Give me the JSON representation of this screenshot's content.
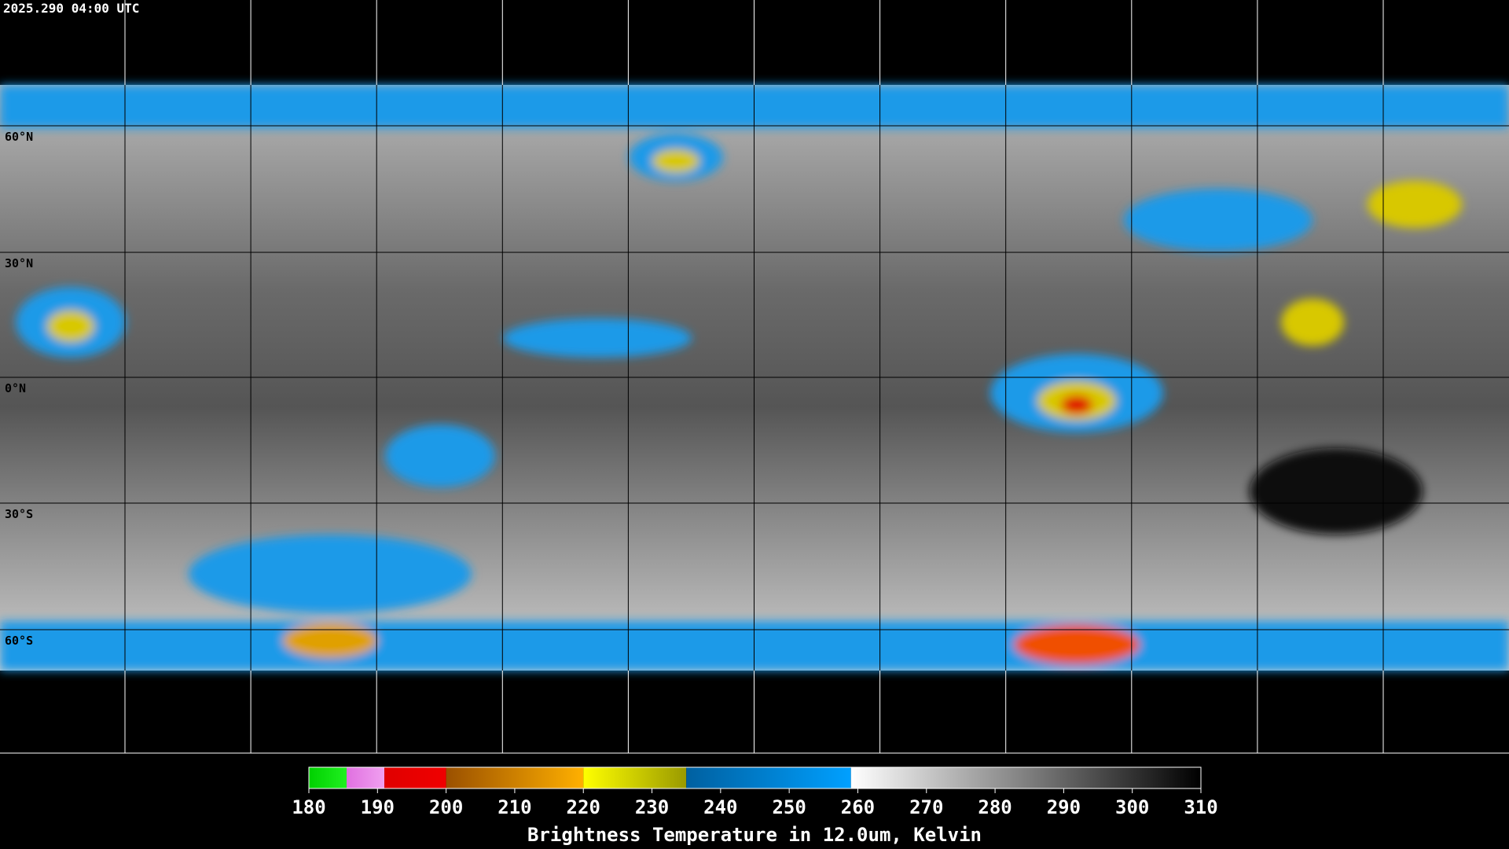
{
  "header": {
    "timestamp": "2025.290 04:00 UTC"
  },
  "map": {
    "latitude_labels": [
      "60°N",
      "30°N",
      "0°N",
      "30°S",
      "60°S"
    ]
  },
  "colorbar": {
    "label": "Brightness Temperature in 12.0um, Kelvin",
    "range": [
      180,
      310
    ],
    "ticks": [
      180,
      190,
      200,
      210,
      220,
      230,
      240,
      250,
      260,
      270,
      280,
      290,
      300,
      310
    ],
    "colormap": [
      {
        "from": 180,
        "to": 185.5,
        "colors": [
          "#00d000",
          "#20f020"
        ]
      },
      {
        "from": 185.5,
        "to": 191,
        "colors": [
          "#e070e0",
          "#f0a0f0"
        ]
      },
      {
        "from": 191,
        "to": 200,
        "colors": [
          "#e00000",
          "#f00000"
        ]
      },
      {
        "from": 200,
        "to": 220,
        "colors": [
          "#9a5000",
          "#ffb000"
        ]
      },
      {
        "from": 220,
        "to": 235,
        "colors": [
          "#ffff00",
          "#9a9a00"
        ]
      },
      {
        "from": 235,
        "to": 259,
        "colors": [
          "#0060a0",
          "#00a0ff"
        ]
      },
      {
        "from": 259,
        "to": 310,
        "colors": [
          "#ffffff",
          "#000000"
        ]
      }
    ]
  }
}
